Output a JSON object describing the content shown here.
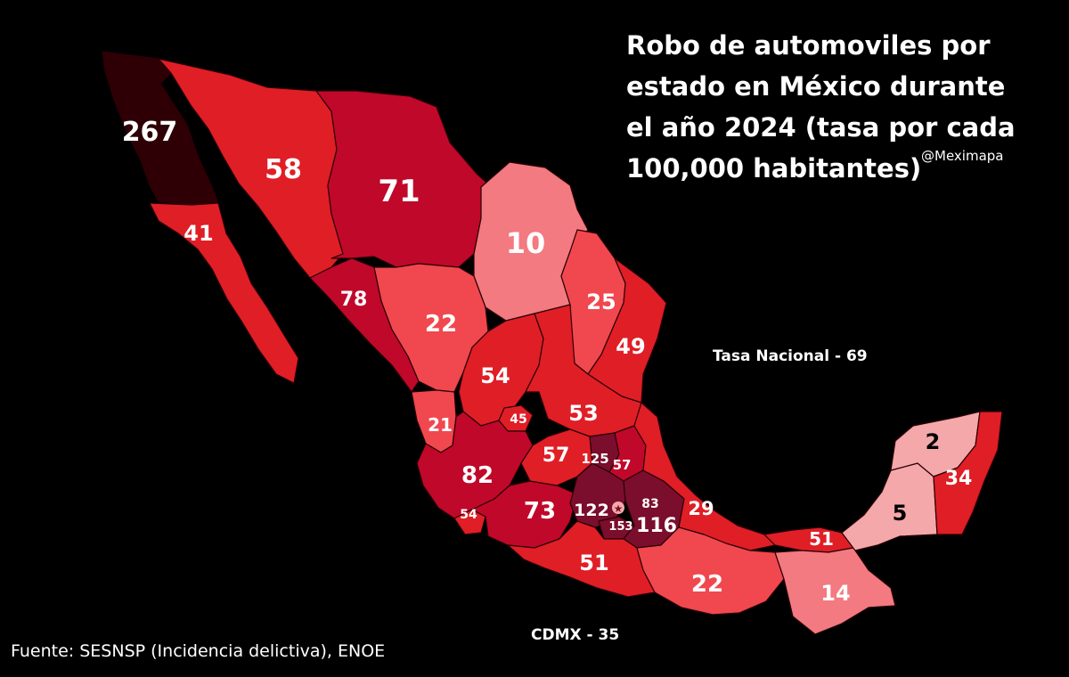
{
  "title": "Robo de automoviles por estado en México durante el año 2024 (tasa por cada 100,000 habitantes)",
  "handle": "@Meximapa",
  "national_rate": "Tasa Nacional - 69",
  "cdmx_rate": "CDMX - 35",
  "source": "Fuente: SESNSP (Incidencia delictiva), ENOE",
  "colors": {
    "background": "#000000",
    "very_high": "#2e0006",
    "high": "#c0082a",
    "mid_high": "#e01e26",
    "mid": "#f0484e",
    "low": "#f27a80",
    "very_low": "#f4a8aa",
    "darkest_center": "#7a0e2c"
  },
  "states": [
    {
      "id": "baja-california",
      "value": "267"
    },
    {
      "id": "sonora",
      "value": "58"
    },
    {
      "id": "chihuahua",
      "value": "71"
    },
    {
      "id": "baja-california-sur",
      "value": "41"
    },
    {
      "id": "coahuila",
      "value": "10"
    },
    {
      "id": "nuevo-leon",
      "value": "25"
    },
    {
      "id": "tamaulipas",
      "value": "49"
    },
    {
      "id": "sinaloa",
      "value": "78"
    },
    {
      "id": "durango",
      "value": "22"
    },
    {
      "id": "zacatecas",
      "value": "54"
    },
    {
      "id": "san-luis-potosi",
      "value": "53"
    },
    {
      "id": "aguascalientes",
      "value": "45"
    },
    {
      "id": "nayarit",
      "value": "21"
    },
    {
      "id": "jalisco",
      "value": "82"
    },
    {
      "id": "guanajuato",
      "value": "57"
    },
    {
      "id": "queretaro",
      "value": "125"
    },
    {
      "id": "hidalgo",
      "value": "57"
    },
    {
      "id": "colima",
      "value": "54"
    },
    {
      "id": "michoacan",
      "value": "73"
    },
    {
      "id": "estado-de-mexico",
      "value": "122"
    },
    {
      "id": "tlaxcala",
      "value": "83"
    },
    {
      "id": "morelos",
      "value": "153"
    },
    {
      "id": "puebla",
      "value": "116"
    },
    {
      "id": "veracruz",
      "value": "29"
    },
    {
      "id": "guerrero",
      "value": "51"
    },
    {
      "id": "oaxaca",
      "value": "22"
    },
    {
      "id": "tabasco",
      "value": "51"
    },
    {
      "id": "chiapas",
      "value": "14"
    },
    {
      "id": "campeche",
      "value": "5"
    },
    {
      "id": "yucatan",
      "value": "2"
    },
    {
      "id": "quintana-roo",
      "value": "34"
    }
  ]
}
